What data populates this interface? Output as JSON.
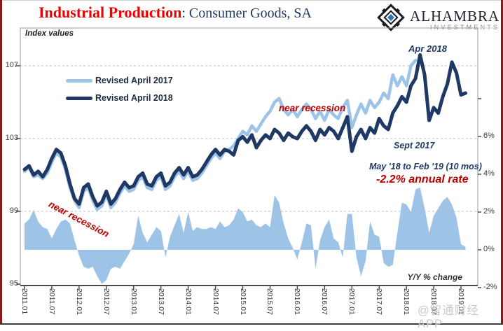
{
  "header": {
    "title_red": "Industrial Production",
    "title_rest": ": Consumer Goods, SA",
    "logo": {
      "name": "ALHAMBRA",
      "subname": "INVESTMENTS"
    }
  },
  "watermark": "@智通财经APP",
  "legend": {
    "items": [
      {
        "label": "Revised April 2017",
        "color": "#9dc3e6"
      },
      {
        "label": "Revised April 2018",
        "color": "#1f3864"
      }
    ]
  },
  "colors": {
    "navy": "#1f3864",
    "light_blue": "#9dc3e6",
    "red_annotation": "#c00000",
    "title_red": "#ea0000",
    "grid": "#bdbdbd",
    "axis": "#8f8f8f"
  },
  "chart_data": {
    "type": "line+area",
    "title": "Industrial Production: Consumer Goods, SA",
    "grid": "dashed horizontal",
    "legend_position": "top-left inside plot",
    "left_axis": {
      "label": "Index values",
      "ticks": [
        107,
        103,
        99,
        95
      ],
      "range": [
        95,
        108.5
      ]
    },
    "right_axis": {
      "label": "Y/Y % change",
      "tick_values": [
        8,
        6,
        4,
        2,
        0,
        -2
      ],
      "tick_labels": [
        "",
        "6%",
        "4%",
        "2%",
        "0%",
        "-2%"
      ],
      "range": [
        -2.1,
        9.6
      ]
    },
    "x_axis": {
      "start": "2011.01",
      "end": "2019.02",
      "interval": "monthly",
      "tick_labels": [
        "2011.01",
        "2011.07",
        "2012.01",
        "2012.07",
        "2013.01",
        "2013.07",
        "2014.01",
        "2014.07",
        "2015.01",
        "2015.07",
        "2016.01",
        "2016.07",
        "2017.01",
        "2017.07",
        "2018.01",
        "2018.07",
        "2019.01"
      ]
    },
    "series": [
      {
        "name": "Revised April 2017",
        "type": "line",
        "axis": "left",
        "color": "#9dc3e6",
        "start": "2011.01",
        "values": [
          101.2,
          101.4,
          100.9,
          101.0,
          100.8,
          101.1,
          101.7,
          102.2,
          102.0,
          101.3,
          100.3,
          99.6,
          99.2,
          100.1,
          100.3,
          99.6,
          99.1,
          99.3,
          99.9,
          99.2,
          99.5,
          100.0,
          100.4,
          100.1,
          100.2,
          100.7,
          100.9,
          100.3,
          100.2,
          100.7,
          100.9,
          100.2,
          100.4,
          100.9,
          101.2,
          100.8,
          101.2,
          100.7,
          100.8,
          101.1,
          101.5,
          101.9,
          102.2,
          101.9,
          102.3,
          102.4,
          102.6,
          103.0,
          103.4,
          103.2,
          103.7,
          103.4,
          103.8,
          104.2,
          104.5,
          105.0,
          105.2,
          104.6,
          104.3,
          104.6,
          104.2,
          104.6,
          104.9,
          104.6,
          104.1,
          104.5,
          104.0,
          104.6,
          104.3,
          104.1,
          104.7,
          105.1,
          103.6,
          104.3,
          104.9,
          104.4,
          105.1,
          104.7,
          105.0,
          105.5,
          105.2,
          106.5,
          105.9,
          106.4,
          105.9,
          107.0,
          107.3
        ]
      },
      {
        "name": "Revised April 2018",
        "type": "line",
        "axis": "left",
        "color": "#1f3864",
        "start": "2011.01",
        "values": [
          101.3,
          101.5,
          101.0,
          101.2,
          100.9,
          101.3,
          101.9,
          102.4,
          102.2,
          101.5,
          100.5,
          99.7,
          99.4,
          100.3,
          100.5,
          99.8,
          99.3,
          99.5,
          100.1,
          99.4,
          99.7,
          100.2,
          100.6,
          100.3,
          100.4,
          100.9,
          101.1,
          100.5,
          100.4,
          100.9,
          101.1,
          100.4,
          100.6,
          101.1,
          101.4,
          101.0,
          101.4,
          100.9,
          101.0,
          101.3,
          101.7,
          102.1,
          102.4,
          102.1,
          102.4,
          102.3,
          102.1,
          102.9,
          103.1,
          102.8,
          103.2,
          102.5,
          102.9,
          103.2,
          103.0,
          103.5,
          103.3,
          102.9,
          103.3,
          103.1,
          103.0,
          103.4,
          103.7,
          103.4,
          102.9,
          103.5,
          103.2,
          103.6,
          103.4,
          103.0,
          103.6,
          104.2,
          102.3,
          103.1,
          103.5,
          103.0,
          103.6,
          103.3,
          104.1,
          103.7,
          103.5,
          104.4,
          104.8,
          105.3,
          105.0,
          105.9,
          106.3,
          107.6,
          106.5,
          104.0,
          104.7,
          104.4,
          105.3,
          106.0,
          107.2,
          106.6,
          105.4,
          105.5
        ]
      },
      {
        "name": "Y/Y % change",
        "type": "area",
        "axis": "right",
        "color": "#9dc3e6",
        "start": "2011.01",
        "values": [
          1.4,
          1.6,
          2.1,
          1.5,
          1.2,
          1.1,
          0.6,
          1.1,
          1.5,
          1.6,
          1.4,
          0.5,
          -0.3,
          -0.9,
          -1.0,
          -0.9,
          -1.4,
          -1.8,
          -1.6,
          -1.0,
          -0.9,
          -1.0,
          -0.6,
          -0.2,
          0.3,
          1.8,
          0.9,
          0.4,
          0.8,
          1.2,
          1.0,
          -0.4,
          0.7,
          1.3,
          1.9,
          0.9,
          2.0,
          1.0,
          1.2,
          1.1,
          1.1,
          1.2,
          1.1,
          1.5,
          1.2,
          1.3,
          1.6,
          2.2,
          2.0,
          1.5,
          1.6,
          1.3,
          1.2,
          1.4,
          1.2,
          2.9,
          2.5,
          1.4,
          0.6,
          0.1,
          -0.5,
          0.4,
          1.4,
          1.3,
          -1.0,
          0.5,
          1.2,
          1.6,
          0.6,
          0.4,
          -0.4,
          1.9,
          1.9,
          -0.4,
          -1.4,
          -0.6,
          1.5,
          0.8,
          0.7,
          -0.7,
          -0.9,
          -0.8,
          0.9,
          2.5,
          2.4,
          2.0,
          3.2,
          3.3,
          2.2,
          0.9,
          1.8,
          2.2,
          2.6,
          2.8,
          2.4,
          1.7,
          0.3,
          0.15
        ]
      }
    ],
    "annotations": [
      {
        "text": "Apr 2018",
        "color": "#1f3864"
      },
      {
        "text": "near recession",
        "color": "#c00000"
      },
      {
        "text": "Sept 2017",
        "color": "#1f3864"
      },
      {
        "text": "May '18 to Feb '19 (10 mos)",
        "color": "#1f3864"
      },
      {
        "text": "-2.2% annual rate",
        "color": "#c00000"
      },
      {
        "text": "near recession",
        "color": "#c00000",
        "rotated": true
      },
      {
        "text": "Index values",
        "color": "#222222"
      },
      {
        "text": "Y/Y % change",
        "color": "#333333"
      }
    ]
  }
}
